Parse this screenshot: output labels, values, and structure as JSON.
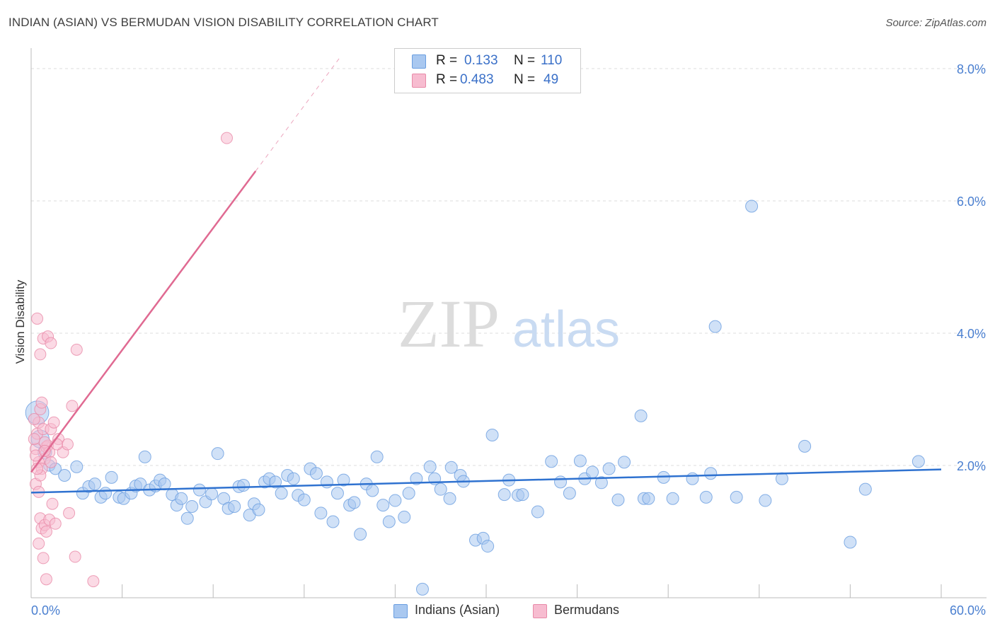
{
  "header": {
    "title": "INDIAN (ASIAN) VS BERMUDAN VISION DISABILITY CORRELATION CHART",
    "source": "Source: ZipAtlas.com"
  },
  "watermark": {
    "zip": "ZIP",
    "atlas": "atlas"
  },
  "legend": {
    "rows": [
      {
        "r_label": "R =",
        "r_value": "0.133",
        "n_label": "N =",
        "n_value": "110",
        "color": "#a9c8f0",
        "border": "#6a9ee0"
      },
      {
        "r_label": "R =",
        "r_value": "0.483",
        "n_label": "N =",
        "n_value": "49",
        "color": "#f7bcd0",
        "border": "#e88aa8"
      }
    ]
  },
  "bottom_legend": [
    {
      "label": "Indians (Asian)",
      "color": "#a9c8f0",
      "border": "#6a9ee0"
    },
    {
      "label": "Bermudans",
      "color": "#f7bcd0",
      "border": "#e88aa8"
    }
  ],
  "chart_data": {
    "type": "scatter",
    "title": "INDIAN (ASIAN) VS BERMUDAN VISION DISABILITY CORRELATION CHART",
    "xlabel": "",
    "ylabel": "Vision Disability",
    "xlim": [
      0,
      62
    ],
    "ylim": [
      0,
      8.3
    ],
    "x_tick_labels": [
      "0.0%",
      "60.0%"
    ],
    "y_ticks": [
      2,
      4,
      6,
      8
    ],
    "y_tick_labels": [
      "2.0%",
      "4.0%",
      "6.0%",
      "8.0%"
    ],
    "grid": true,
    "series": [
      {
        "name": "Indians (Asian)",
        "color": "#a9c8f0",
        "stroke": "#6a9ee0",
        "trend": {
          "x0": 0,
          "y0": 1.59,
          "x1": 60,
          "y1": 1.94,
          "color": "#2f72d0"
        },
        "points": [
          [
            0.4,
            2.8,
            2.2
          ],
          [
            0.6,
            2.4,
            1.7
          ],
          [
            0.9,
            2.2,
            1.3
          ],
          [
            1.2,
            2.0,
            1.1
          ],
          [
            1.6,
            1.95,
            1.1
          ],
          [
            2.2,
            1.85,
            1.0
          ],
          [
            3.0,
            1.98,
            0.9
          ],
          [
            3.4,
            1.58,
            0.8
          ],
          [
            3.8,
            1.68,
            0.8
          ],
          [
            4.2,
            1.72,
            0.8
          ],
          [
            4.6,
            1.52,
            0.8
          ],
          [
            4.9,
            1.58,
            0.8
          ],
          [
            5.3,
            1.82,
            0.8
          ],
          [
            5.8,
            1.52,
            0.8
          ],
          [
            6.1,
            1.5,
            0.8
          ],
          [
            6.6,
            1.58,
            0.8
          ],
          [
            6.9,
            1.69,
            0.8
          ],
          [
            7.2,
            1.72,
            0.8
          ],
          [
            7.5,
            2.13,
            0.8
          ],
          [
            7.8,
            1.63,
            0.8
          ],
          [
            8.2,
            1.69,
            0.8
          ],
          [
            8.5,
            1.78,
            0.8
          ],
          [
            8.8,
            1.72,
            0.8
          ],
          [
            9.3,
            1.56,
            0.8
          ],
          [
            9.6,
            1.4,
            0.8
          ],
          [
            9.9,
            1.5,
            0.8
          ],
          [
            10.3,
            1.2,
            0.8
          ],
          [
            10.6,
            1.38,
            0.8
          ],
          [
            11.1,
            1.63,
            0.8
          ],
          [
            11.5,
            1.45,
            0.8
          ],
          [
            11.9,
            1.57,
            0.8
          ],
          [
            12.3,
            2.18,
            0.8
          ],
          [
            12.7,
            1.5,
            0.8
          ],
          [
            13.0,
            1.35,
            0.8
          ],
          [
            13.4,
            1.38,
            0.8
          ],
          [
            13.7,
            1.68,
            0.8
          ],
          [
            14.0,
            1.7,
            0.8
          ],
          [
            14.4,
            1.25,
            0.8
          ],
          [
            14.7,
            1.42,
            0.8
          ],
          [
            15.0,
            1.33,
            0.8
          ],
          [
            15.4,
            1.75,
            0.8
          ],
          [
            15.7,
            1.8,
            0.8
          ],
          [
            16.1,
            1.75,
            0.8
          ],
          [
            16.5,
            1.58,
            0.8
          ],
          [
            16.9,
            1.85,
            0.8
          ],
          [
            17.3,
            1.8,
            0.8
          ],
          [
            17.6,
            1.55,
            0.8
          ],
          [
            18.0,
            1.48,
            0.8
          ],
          [
            18.4,
            1.95,
            0.8
          ],
          [
            18.8,
            1.88,
            0.8
          ],
          [
            19.1,
            1.28,
            0.8
          ],
          [
            19.5,
            1.75,
            0.8
          ],
          [
            19.9,
            1.15,
            0.8
          ],
          [
            20.2,
            1.58,
            0.8
          ],
          [
            20.6,
            1.78,
            0.8
          ],
          [
            21.0,
            1.4,
            0.8
          ],
          [
            21.3,
            1.44,
            0.8
          ],
          [
            21.7,
            0.96,
            0.8
          ],
          [
            22.1,
            1.72,
            0.8
          ],
          [
            22.5,
            1.62,
            0.8
          ],
          [
            22.8,
            2.13,
            0.8
          ],
          [
            23.2,
            1.4,
            0.8
          ],
          [
            23.6,
            1.15,
            0.8
          ],
          [
            24.0,
            1.47,
            0.8
          ],
          [
            24.6,
            1.22,
            0.8
          ],
          [
            24.9,
            1.58,
            0.8
          ],
          [
            25.4,
            1.8,
            0.8
          ],
          [
            25.8,
            0.13,
            0.8
          ],
          [
            26.3,
            1.98,
            0.8
          ],
          [
            26.6,
            1.8,
            0.8
          ],
          [
            27.0,
            1.64,
            0.8
          ],
          [
            27.6,
            1.5,
            0.8
          ],
          [
            27.7,
            1.97,
            0.8
          ],
          [
            28.3,
            1.85,
            0.8
          ],
          [
            28.5,
            1.76,
            0.8
          ],
          [
            29.3,
            0.87,
            0.8
          ],
          [
            29.8,
            0.9,
            0.8
          ],
          [
            30.1,
            0.78,
            0.8
          ],
          [
            30.4,
            2.46,
            0.8
          ],
          [
            31.2,
            1.56,
            0.8
          ],
          [
            31.5,
            1.78,
            0.8
          ],
          [
            32.1,
            1.55,
            0.8
          ],
          [
            32.4,
            1.56,
            0.8
          ],
          [
            33.4,
            1.3,
            0.8
          ],
          [
            34.3,
            2.06,
            0.8
          ],
          [
            34.9,
            1.75,
            0.8
          ],
          [
            35.5,
            1.58,
            0.8
          ],
          [
            36.2,
            2.07,
            0.8
          ],
          [
            36.5,
            1.8,
            0.8
          ],
          [
            37.0,
            1.9,
            0.8
          ],
          [
            37.6,
            1.74,
            0.8
          ],
          [
            38.1,
            1.95,
            0.8
          ],
          [
            38.7,
            1.48,
            0.8
          ],
          [
            39.1,
            2.05,
            0.8
          ],
          [
            40.2,
            2.75,
            0.8
          ],
          [
            40.4,
            1.5,
            0.8
          ],
          [
            40.7,
            1.5,
            0.8
          ],
          [
            41.7,
            1.82,
            0.8
          ],
          [
            42.3,
            1.5,
            0.8
          ],
          [
            43.6,
            1.8,
            0.8
          ],
          [
            44.5,
            1.52,
            0.8
          ],
          [
            44.8,
            1.88,
            0.8
          ],
          [
            45.1,
            4.1,
            0.8
          ],
          [
            46.5,
            1.52,
            0.8
          ],
          [
            47.5,
            5.92,
            0.8
          ],
          [
            48.4,
            1.47,
            0.8
          ],
          [
            49.5,
            1.8,
            0.8
          ],
          [
            51.0,
            2.29,
            0.8
          ],
          [
            54.0,
            0.84,
            0.8
          ],
          [
            55.0,
            1.64,
            0.8
          ],
          [
            58.5,
            2.06,
            0.8
          ]
        ]
      },
      {
        "name": "Bermudans",
        "color": "#f7bcd0",
        "stroke": "#e88aa8",
        "trend": {
          "x0": 0,
          "y0": 1.9,
          "x1": 14.8,
          "y1": 6.45,
          "x2": 20.3,
          "y2": 8.15,
          "color": "#e06a92"
        },
        "points": [
          [
            0.3,
            2.25
          ],
          [
            0.4,
            2.48
          ],
          [
            0.5,
            2.65
          ],
          [
            0.6,
            2.85
          ],
          [
            0.7,
            2.95
          ],
          [
            0.8,
            2.55
          ],
          [
            0.9,
            2.1
          ],
          [
            0.5,
            2.05
          ],
          [
            0.7,
            1.95
          ],
          [
            1.0,
            2.28
          ],
          [
            1.1,
            2.3
          ],
          [
            1.2,
            2.2
          ],
          [
            1.3,
            2.05
          ],
          [
            0.4,
            4.22
          ],
          [
            0.6,
            3.68
          ],
          [
            0.8,
            3.92
          ],
          [
            1.1,
            3.95
          ],
          [
            1.3,
            3.85
          ],
          [
            0.3,
            1.72
          ],
          [
            0.5,
            1.6
          ],
          [
            0.6,
            1.85
          ],
          [
            0.9,
            2.35
          ],
          [
            1.3,
            2.55
          ],
          [
            1.5,
            2.65
          ],
          [
            1.8,
            2.4
          ],
          [
            2.1,
            2.2
          ],
          [
            2.4,
            2.32
          ],
          [
            2.7,
            2.9
          ],
          [
            3.0,
            3.75
          ],
          [
            0.6,
            1.2
          ],
          [
            0.7,
            1.05
          ],
          [
            0.9,
            1.1
          ],
          [
            1.0,
            1.0
          ],
          [
            1.2,
            1.18
          ],
          [
            1.4,
            1.42
          ],
          [
            0.5,
            0.82
          ],
          [
            0.8,
            0.6
          ],
          [
            1.0,
            0.28
          ],
          [
            2.5,
            1.28
          ],
          [
            2.9,
            0.62
          ],
          [
            4.1,
            0.25
          ],
          [
            12.9,
            6.95
          ],
          [
            0.2,
            2.4
          ],
          [
            0.3,
            2.15
          ],
          [
            0.4,
            1.95
          ],
          [
            1.6,
            1.12
          ],
          [
            0.2,
            2.7
          ],
          [
            0.9,
            2.22
          ],
          [
            1.7,
            2.32
          ]
        ]
      }
    ]
  }
}
